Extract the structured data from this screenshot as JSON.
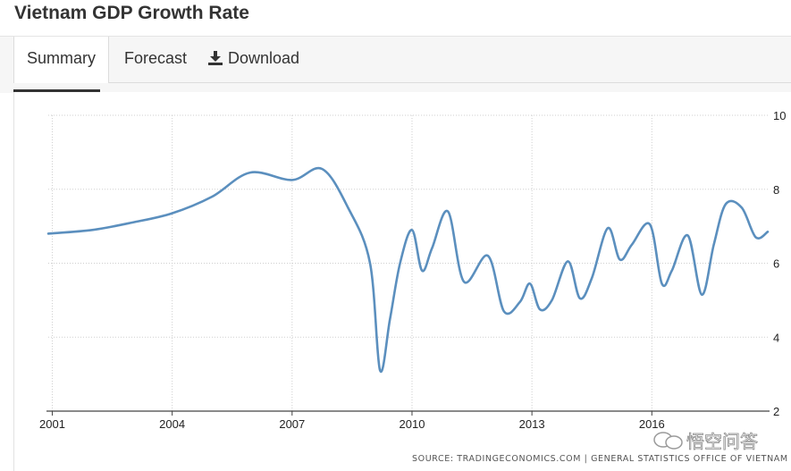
{
  "page": {
    "title": "Vietnam GDP Growth Rate"
  },
  "tabs": {
    "summary": "Summary",
    "forecast": "Forecast",
    "download": "Download"
  },
  "icons": {
    "download": "download-icon",
    "watermark": "chat-bubble-icon"
  },
  "colors": {
    "line": "#5b8fbe",
    "grid": "#cfcfcf"
  },
  "footer": {
    "source": "SOURCE: TRADINGECONOMICS.COM  |  GENERAL STATISTICS OFFICE OF VIETNAM",
    "watermark": "悟空问答"
  },
  "chart_data": {
    "type": "line",
    "title": "Vietnam GDP Growth Rate",
    "xlabel": "",
    "ylabel": "",
    "xlim": [
      2000.9,
      2018.9
    ],
    "ylim": [
      2,
      10
    ],
    "x_ticks": [
      2001,
      2004,
      2007,
      2010,
      2013,
      2016
    ],
    "y_ticks": [
      10,
      8,
      6,
      4,
      2
    ],
    "grid": true,
    "legend": "none",
    "series": [
      {
        "name": "GDP Growth Rate",
        "points": [
          [
            2000.9,
            6.8
          ],
          [
            2002.0,
            6.9
          ],
          [
            2003.0,
            7.1
          ],
          [
            2004.0,
            7.35
          ],
          [
            2005.0,
            7.8
          ],
          [
            2005.95,
            8.45
          ],
          [
            2007.0,
            8.25
          ],
          [
            2007.75,
            8.55
          ],
          [
            2008.4,
            7.5
          ],
          [
            2008.95,
            6.0
          ],
          [
            2009.2,
            3.1
          ],
          [
            2009.45,
            4.5
          ],
          [
            2009.7,
            6.0
          ],
          [
            2010.0,
            6.9
          ],
          [
            2010.25,
            5.8
          ],
          [
            2010.5,
            6.4
          ],
          [
            2010.9,
            7.4
          ],
          [
            2011.3,
            5.5
          ],
          [
            2011.9,
            6.2
          ],
          [
            2012.3,
            4.7
          ],
          [
            2012.7,
            4.95
          ],
          [
            2012.95,
            5.45
          ],
          [
            2013.2,
            4.75
          ],
          [
            2013.5,
            5.0
          ],
          [
            2013.9,
            6.05
          ],
          [
            2014.2,
            5.05
          ],
          [
            2014.5,
            5.6
          ],
          [
            2014.9,
            6.95
          ],
          [
            2015.2,
            6.1
          ],
          [
            2015.5,
            6.5
          ],
          [
            2015.95,
            7.05
          ],
          [
            2016.25,
            5.45
          ],
          [
            2016.5,
            5.8
          ],
          [
            2016.9,
            6.75
          ],
          [
            2017.25,
            5.15
          ],
          [
            2017.55,
            6.5
          ],
          [
            2017.85,
            7.6
          ],
          [
            2018.25,
            7.5
          ],
          [
            2018.6,
            6.7
          ],
          [
            2018.9,
            6.85
          ]
        ]
      }
    ]
  }
}
